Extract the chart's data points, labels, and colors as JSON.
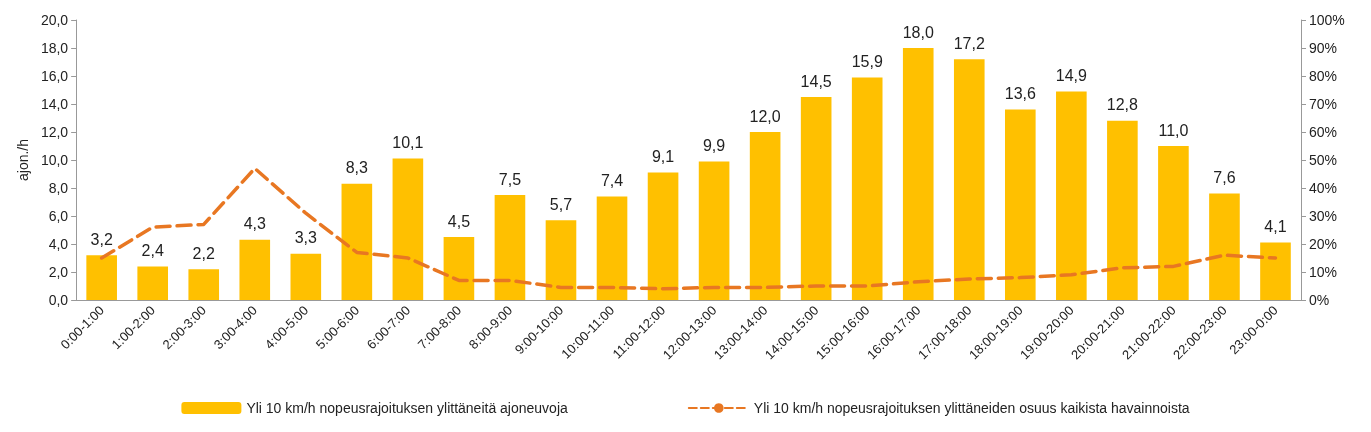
{
  "chart_data": {
    "type": "bar",
    "ylabel": "ajon./h",
    "categories": [
      "0:00-1:00",
      "1:00-2:00",
      "2:00-3:00",
      "3:00-4:00",
      "4:00-5:00",
      "5:00-6:00",
      "6:00-7:00",
      "7:00-8:00",
      "8:00-9:00",
      "9:00-10:00",
      "10:00-11:00",
      "11:00-12:00",
      "12:00-13:00",
      "13:00-14:00",
      "14:00-15:00",
      "15:00-16:00",
      "16:00-17:00",
      "17:00-18:00",
      "18:00-19:00",
      "19:00-20:00",
      "20:00-21:00",
      "21:00-22:00",
      "22:00-23:00",
      "23:00-0:00"
    ],
    "series": [
      {
        "name": "Yli 10 km/h nopeusrajoituksen ylittäneitä ajoneuvoja",
        "color": "#ffc000",
        "values": [
          3.2,
          2.4,
          2.2,
          4.3,
          3.3,
          8.3,
          10.1,
          4.5,
          7.5,
          5.7,
          7.4,
          9.1,
          9.9,
          12.0,
          14.5,
          15.9,
          18.0,
          17.2,
          13.6,
          14.9,
          12.8,
          11.0,
          7.6,
          4.1
        ],
        "value_labels": [
          "3,2",
          "2,4",
          "2,2",
          "4,3",
          "3,3",
          "8,3",
          "10,1",
          "4,5",
          "7,5",
          "5,7",
          "7,4",
          "9,1",
          "9,9",
          "12,0",
          "14,5",
          "15,9",
          "18,0",
          "17,2",
          "13,6",
          "14,9",
          "12,8",
          "11,0",
          "7,6",
          "4,1"
        ]
      },
      {
        "name": "Yli 10 km/h nopeusrajoituksen ylittäneiden osuus kaikista havainnoista",
        "type": "line",
        "axis": "y2",
        "color": "#e87722",
        "line_style": "dashed",
        "marker": "none",
        "values": [
          15,
          26,
          27,
          47,
          31,
          17,
          15,
          7,
          7,
          4.5,
          4.5,
          4,
          4.5,
          4.5,
          5,
          5,
          6.5,
          7.5,
          8,
          9,
          11.5,
          12,
          16,
          15
        ]
      }
    ],
    "ylim": [
      0,
      20
    ],
    "yticks": [
      {
        "value": 0,
        "label": "0,0"
      },
      {
        "value": 2,
        "label": "2,0"
      },
      {
        "value": 4,
        "label": "4,0"
      },
      {
        "value": 6,
        "label": "6,0"
      },
      {
        "value": 8,
        "label": "8,0"
      },
      {
        "value": 10,
        "label": "10,0"
      },
      {
        "value": 12,
        "label": "12,0"
      },
      {
        "value": 14,
        "label": "14,0"
      },
      {
        "value": 16,
        "label": "16,0"
      },
      {
        "value": 18,
        "label": "18,0"
      },
      {
        "value": 20,
        "label": "20,0"
      }
    ],
    "y2lim": [
      0,
      100
    ],
    "y2ticks": [
      {
        "value": 0,
        "label": "0%"
      },
      {
        "value": 10,
        "label": "10%"
      },
      {
        "value": 20,
        "label": "20%"
      },
      {
        "value": 30,
        "label": "30%"
      },
      {
        "value": 40,
        "label": "40%"
      },
      {
        "value": 50,
        "label": "50%"
      },
      {
        "value": 60,
        "label": "60%"
      },
      {
        "value": 70,
        "label": "70%"
      },
      {
        "value": 80,
        "label": "80%"
      },
      {
        "value": 90,
        "label": "90%"
      },
      {
        "value": 100,
        "label": "100%"
      }
    ],
    "legend": "bottom"
  }
}
